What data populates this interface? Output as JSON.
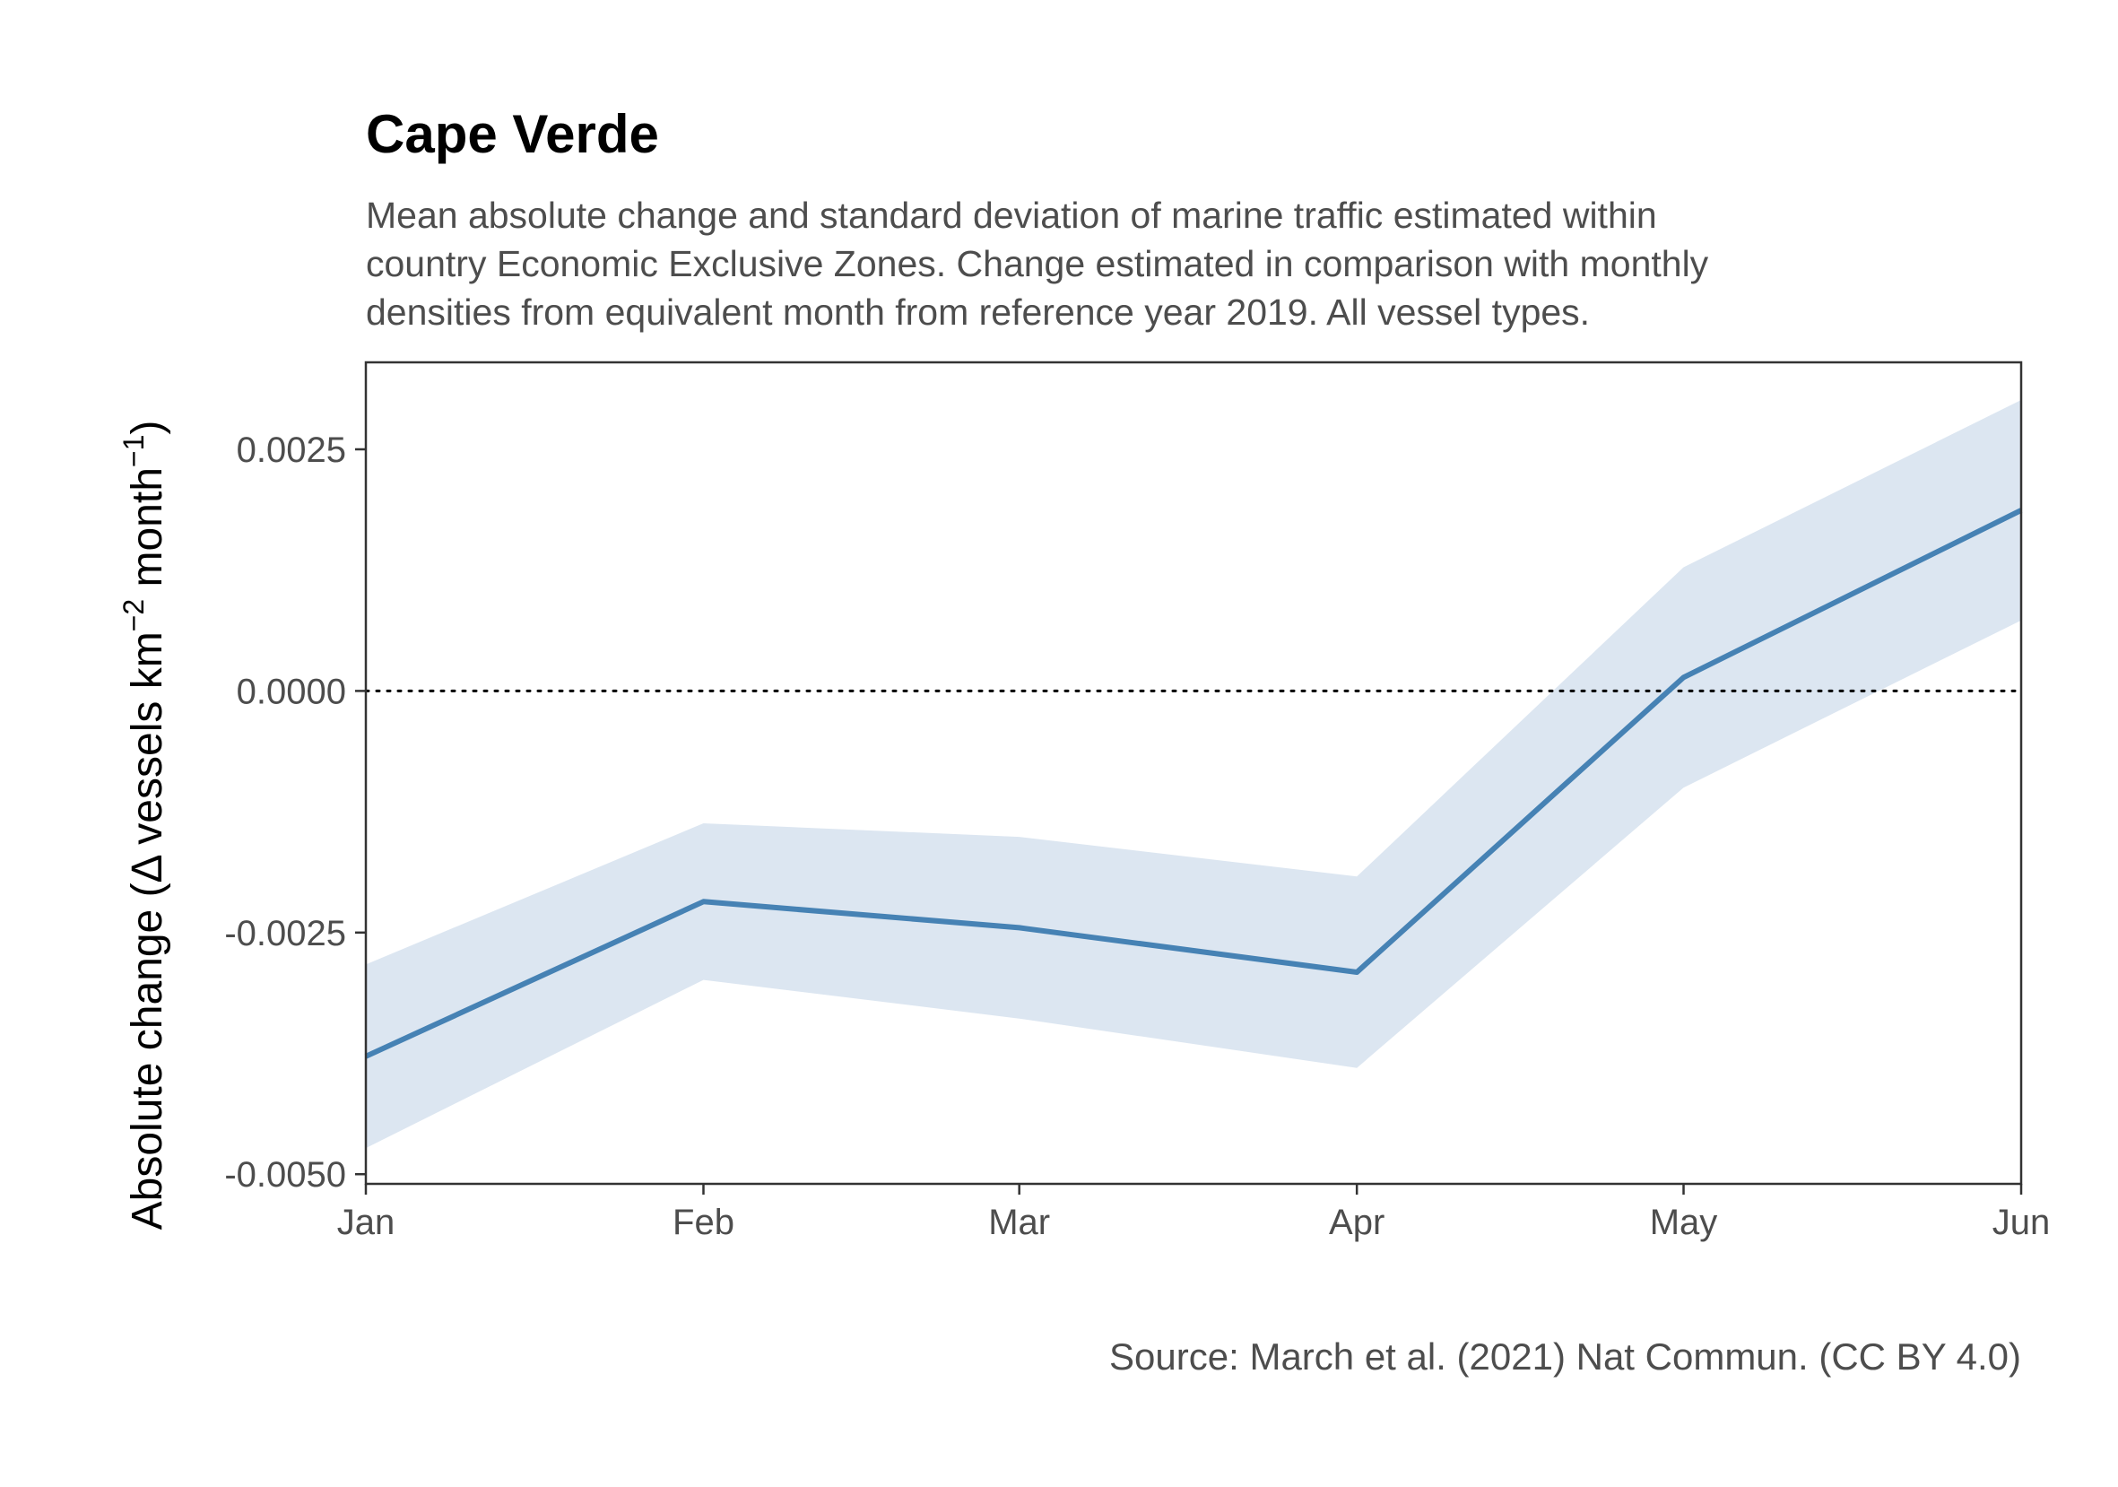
{
  "chart_data": {
    "type": "line",
    "title": "Cape Verde",
    "subtitle_lines": [
      "Mean absolute change and standard deviation of marine traffic estimated within",
      "country Economic Exclusive Zones. Change estimated in comparison with monthly",
      "densities from equivalent month from reference year 2019. All vessel types."
    ],
    "ylabel": {
      "prefix": "Absolute change (Δ vessels km",
      "sup1": "−2",
      "middle": " month",
      "sup2": "−1",
      "suffix": ")"
    },
    "xlabel": "",
    "caption": "Source: March et al. (2021) Nat Commun. (CC BY 4.0)",
    "categories": [
      "Jan",
      "Feb",
      "Mar",
      "Apr",
      "May",
      "Jun"
    ],
    "x_days": [
      1,
      32,
      61,
      92,
      122,
      153
    ],
    "ylim": [
      -0.0051,
      0.0034
    ],
    "y_ticks": [
      {
        "value": -0.005,
        "label": "-0.0050"
      },
      {
        "value": -0.0025,
        "label": "-0.0025"
      },
      {
        "value": 0.0,
        "label": "0.0000"
      },
      {
        "value": 0.0025,
        "label": "0.0025"
      }
    ],
    "series": [
      {
        "values": [
          -0.00378,
          -0.00218,
          -0.00245,
          -0.00291,
          0.00014,
          0.00187
        ],
        "sd_lower": [
          -0.00473,
          -0.00299,
          -0.00339,
          -0.0039,
          -0.001,
          0.00073
        ],
        "sd_upper": [
          -0.00283,
          -0.00137,
          -0.00151,
          -0.00192,
          0.00128,
          0.00301
        ]
      }
    ],
    "reference_line": {
      "y": 0,
      "style": "dotted"
    },
    "grid": false,
    "colors": {
      "line": "#4682b4",
      "band": "#dce6f1",
      "axis": "#333333",
      "tick_label": "#4d4d4d"
    }
  }
}
